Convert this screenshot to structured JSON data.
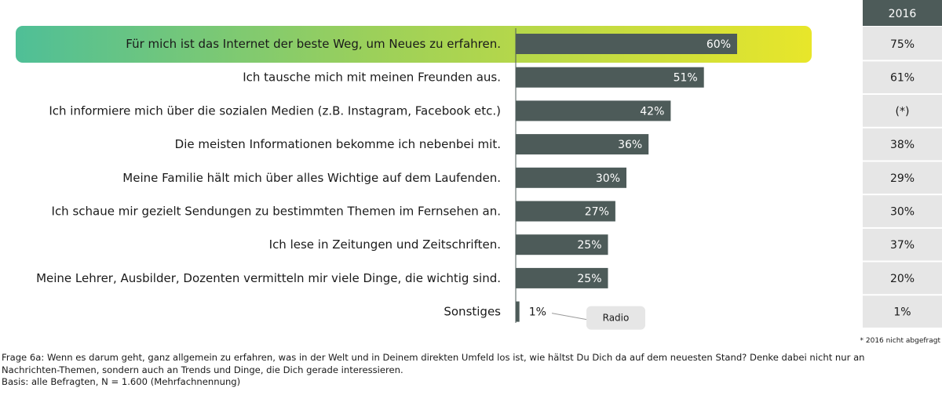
{
  "chart_data": {
    "type": "bar",
    "orientation": "horizontal",
    "categories": [
      "Für mich ist das Internet der beste Weg, um Neues zu erfahren.",
      "Ich tausche mich mit meinen Freunden aus.",
      "Ich informiere mich über die sozialen Medien (z.B. Instagram, Facebook etc.)",
      "Die meisten Informationen bekomme ich nebenbei mit.",
      "Meine Familie hält mich über alles Wichtige auf dem Laufenden.",
      "Ich schaue mir gezielt Sendungen zu bestimmten Themen im Fernsehen an.",
      "Ich lese in Zeitungen und Zeitschriften.",
      "Meine Lehrer, Ausbilder, Dozenten vermitteln mir viele Dinge, die wichtig sind.",
      "Sonstiges"
    ],
    "values": [
      60,
      51,
      42,
      36,
      30,
      27,
      25,
      25,
      1
    ],
    "value_labels": [
      "60%",
      "51%",
      "42%",
      "36%",
      "30%",
      "27%",
      "25%",
      "25%",
      "1%"
    ],
    "highlighted_index": 0,
    "comparison_column": {
      "header": "2016",
      "values": [
        "75%",
        "61%",
        "(*)",
        "38%",
        "29%",
        "30%",
        "37%",
        "20%",
        "1%"
      ]
    },
    "annotations": [
      {
        "text": "Radio",
        "target_index": 8
      }
    ],
    "colors": {
      "bar": "#4d5b59",
      "column_header_bg": "#4d5b59",
      "column_bg": "#e6e6e6",
      "highlight_gradient": [
        "#4fbf97",
        "#9cd05a",
        "#e8e62a"
      ],
      "callout_bg": "#e6e6e6"
    },
    "footnote": "* 2016 nicht abgefragt"
  },
  "footer": {
    "question_line1": "Frage 6a: Wenn es darum geht, ganz allgemein zu erfahren, was in der Welt und in Deinem direkten Umfeld los ist, wie hältst Du Dich da auf dem neuesten Stand? Denke dabei nicht nur an",
    "question_line2": "Nachrichten-Themen, sondern auch an Trends und Dinge, die Dich gerade interessieren.",
    "basis": "Basis: alle Befragten, N = 1.600 (Mehrfachnennung)"
  }
}
